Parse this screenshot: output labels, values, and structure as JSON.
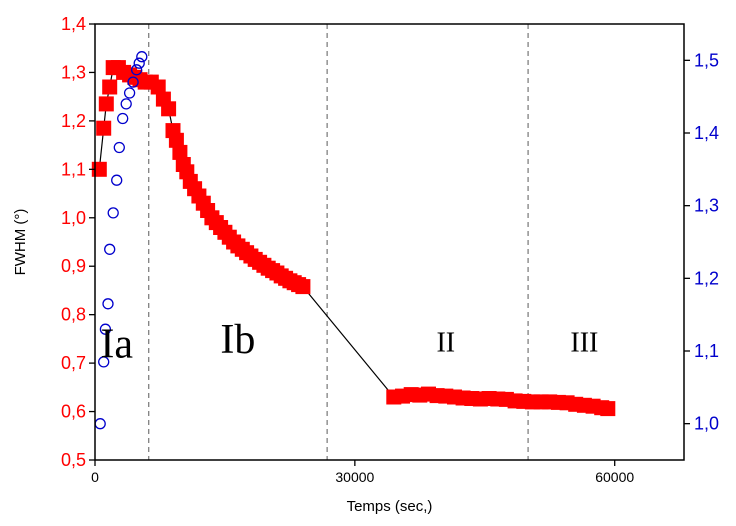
{
  "chart_data": {
    "type": "scatter",
    "title": "",
    "xlabel": "Temps (sec,)",
    "ylabel": "FWHM (°)",
    "y2label": "",
    "xlim": [
      0,
      68000
    ],
    "ylim": [
      0.5,
      1.4
    ],
    "y2lim": [
      0.95,
      1.55
    ],
    "xticks": [
      {
        "value": 0,
        "label": "0"
      },
      {
        "value": 30000,
        "label": "30000"
      },
      {
        "value": 60000,
        "label": "60000"
      }
    ],
    "yticks": [
      {
        "value": 0.5,
        "label": "0,5"
      },
      {
        "value": 0.6,
        "label": "0,6"
      },
      {
        "value": 0.7,
        "label": "0,7"
      },
      {
        "value": 0.8,
        "label": "0,8"
      },
      {
        "value": 0.9,
        "label": "0,9"
      },
      {
        "value": 1.0,
        "label": "1,0"
      },
      {
        "value": 1.1,
        "label": "1,1"
      },
      {
        "value": 1.2,
        "label": "1,2"
      },
      {
        "value": 1.3,
        "label": "1,3"
      },
      {
        "value": 1.4,
        "label": "1,4"
      }
    ],
    "y2ticks": [
      {
        "value": 1.0,
        "label": "1,0"
      },
      {
        "value": 1.1,
        "label": "1,1"
      },
      {
        "value": 1.2,
        "label": "1,2"
      },
      {
        "value": 1.3,
        "label": "1,3"
      },
      {
        "value": 1.4,
        "label": "1,4"
      },
      {
        "value": 1.5,
        "label": "1,5"
      }
    ],
    "vlines": [
      6200,
      26800,
      50000
    ],
    "region_labels": [
      {
        "text": "Ia",
        "x": 2500,
        "y": 0.74
      },
      {
        "text": "Ib",
        "x": 16500,
        "y": 0.75
      },
      {
        "text": "II",
        "x": 40500,
        "y": 0.745
      },
      {
        "text": "III",
        "x": 56500,
        "y": 0.745
      }
    ],
    "colors": {
      "series1": "#ff0000",
      "series2": "#0000cc",
      "line": "#000000",
      "vline": "#808080"
    },
    "series": [
      {
        "axis": "left",
        "marker": "filled-square",
        "connect_gaps": true,
        "segments": [
          [
            [
              500,
              1.1
            ],
            [
              1000,
              1.185
            ],
            [
              1300,
              1.235
            ],
            [
              1700,
              1.27
            ],
            [
              2100,
              1.31
            ],
            [
              2700,
              1.31
            ],
            [
              3300,
              1.3
            ],
            [
              4000,
              1.295
            ],
            [
              4600,
              1.29
            ],
            [
              5200,
              1.285
            ],
            [
              5800,
              1.28
            ],
            [
              6500,
              1.28
            ],
            [
              7300,
              1.27
            ],
            [
              7900,
              1.245
            ],
            [
              8500,
              1.225
            ],
            [
              9000,
              1.18
            ],
            [
              9400,
              1.16
            ],
            [
              9800,
              1.135
            ],
            [
              10200,
              1.11
            ],
            [
              10600,
              1.095
            ],
            [
              11000,
              1.075
            ],
            [
              11500,
              1.06
            ],
            [
              12000,
              1.045
            ],
            [
              12500,
              1.03
            ],
            [
              13000,
              1.015
            ],
            [
              13500,
              1.0
            ],
            [
              14000,
              0.99
            ],
            [
              14500,
              0.98
            ],
            [
              15000,
              0.97
            ],
            [
              15500,
              0.96
            ],
            [
              16000,
              0.95
            ],
            [
              16500,
              0.942
            ],
            [
              17000,
              0.935
            ],
            [
              17500,
              0.928
            ],
            [
              18000,
              0.921
            ],
            [
              18500,
              0.914
            ],
            [
              19000,
              0.908
            ],
            [
              19500,
              0.902
            ],
            [
              20000,
              0.896
            ],
            [
              20500,
              0.891
            ],
            [
              21000,
              0.886
            ],
            [
              21500,
              0.88
            ],
            [
              22000,
              0.875
            ],
            [
              22500,
              0.87
            ],
            [
              23000,
              0.866
            ],
            [
              23500,
              0.862
            ],
            [
              24000,
              0.858
            ]
          ],
          [
            [
              34500,
              0.63
            ],
            [
              35500,
              0.632
            ],
            [
              36500,
              0.635
            ],
            [
              37500,
              0.634
            ],
            [
              38500,
              0.636
            ],
            [
              39500,
              0.633
            ],
            [
              40500,
              0.632
            ],
            [
              41500,
              0.63
            ],
            [
              42500,
              0.628
            ],
            [
              43500,
              0.627
            ],
            [
              44500,
              0.626
            ],
            [
              45500,
              0.627
            ],
            [
              46500,
              0.626
            ],
            [
              47500,
              0.625
            ],
            [
              48500,
              0.622
            ],
            [
              49500,
              0.621
            ],
            [
              50500,
              0.62
            ],
            [
              51500,
              0.62
            ],
            [
              52500,
              0.62
            ],
            [
              53500,
              0.619
            ],
            [
              54500,
              0.618
            ],
            [
              55500,
              0.615
            ],
            [
              56500,
              0.613
            ],
            [
              57500,
              0.611
            ],
            [
              58500,
              0.608
            ],
            [
              59200,
              0.606
            ]
          ]
        ]
      },
      {
        "axis": "right",
        "marker": "open-circle",
        "points": [
          [
            600,
            1.0
          ],
          [
            1000,
            1.085
          ],
          [
            1200,
            1.13
          ],
          [
            1500,
            1.165
          ],
          [
            1700,
            1.24
          ],
          [
            2100,
            1.29
          ],
          [
            2500,
            1.335
          ],
          [
            2800,
            1.38
          ],
          [
            3200,
            1.42
          ],
          [
            3600,
            1.44
          ],
          [
            4000,
            1.455
          ],
          [
            4400,
            1.47
          ],
          [
            4800,
            1.487
          ],
          [
            5100,
            1.496
          ],
          [
            5400,
            1.505
          ]
        ]
      }
    ]
  }
}
